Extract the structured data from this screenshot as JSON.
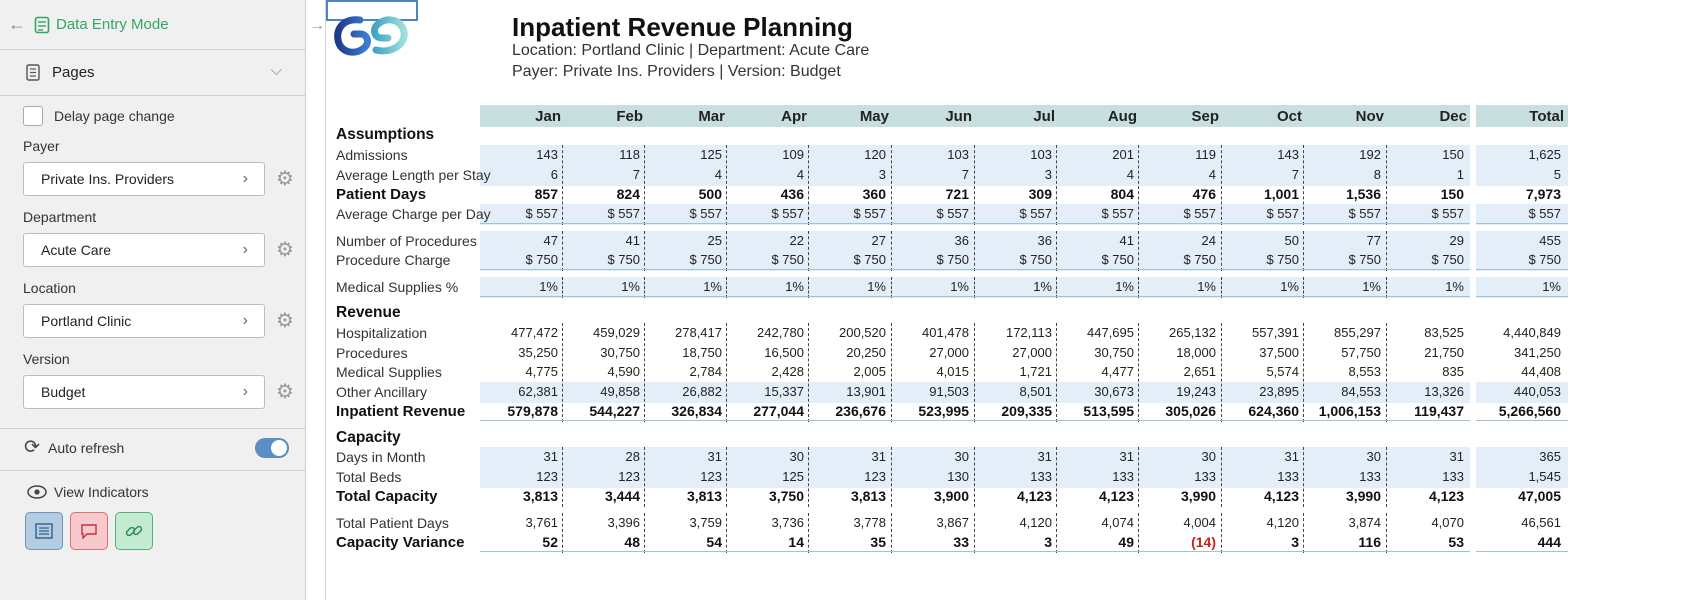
{
  "sidebar": {
    "mode_label": "Data Entry Mode",
    "pages_label": "Pages",
    "delay_label": "Delay page change",
    "selectors": [
      {
        "label": "Payer",
        "value": "Private Ins. Providers"
      },
      {
        "label": "Department",
        "value": "Acute Care"
      },
      {
        "label": "Location",
        "value": "Portland Clinic"
      },
      {
        "label": "Version",
        "value": "Budget"
      }
    ],
    "auto_refresh_label": "Auto refresh",
    "view_indicators_label": "View Indicators"
  },
  "report": {
    "title": "Inpatient Revenue Planning",
    "subtitle1": "Location: Portland Clinic | Department: Acute Care",
    "subtitle2": "Payer: Private Ins. Providers | Version: Budget",
    "columns": [
      "Jan",
      "Feb",
      "Mar",
      "Apr",
      "May",
      "Jun",
      "Jul",
      "Aug",
      "Sep",
      "Oct",
      "Nov",
      "Dec",
      "Total"
    ],
    "sections": {
      "assumptions": "Assumptions",
      "revenue": "Revenue",
      "capacity": "Capacity"
    },
    "rows": [
      {
        "label": "Admissions",
        "values": [
          "143",
          "118",
          "125",
          "109",
          "120",
          "103",
          "103",
          "201",
          "119",
          "143",
          "192",
          "150",
          "1,625"
        ]
      },
      {
        "label": "Average Length per Stay",
        "values": [
          "6",
          "7",
          "4",
          "4",
          "3",
          "7",
          "3",
          "4",
          "4",
          "7",
          "8",
          "1",
          "5"
        ]
      },
      {
        "label": "Patient Days",
        "values": [
          "857",
          "824",
          "500",
          "436",
          "360",
          "721",
          "309",
          "804",
          "476",
          "1,001",
          "1,536",
          "150",
          "7,973"
        ]
      },
      {
        "label": "Average Charge per Day",
        "values": [
          "$ 557",
          "$ 557",
          "$ 557",
          "$ 557",
          "$ 557",
          "$ 557",
          "$ 557",
          "$ 557",
          "$ 557",
          "$ 557",
          "$ 557",
          "$ 557",
          "$ 557"
        ]
      },
      {
        "label": "Number of Procedures",
        "values": [
          "47",
          "41",
          "25",
          "22",
          "27",
          "36",
          "36",
          "41",
          "24",
          "50",
          "77",
          "29",
          "455"
        ]
      },
      {
        "label": "Procedure Charge",
        "values": [
          "$ 750",
          "$ 750",
          "$ 750",
          "$ 750",
          "$ 750",
          "$ 750",
          "$ 750",
          "$ 750",
          "$ 750",
          "$ 750",
          "$ 750",
          "$ 750",
          "$ 750"
        ]
      },
      {
        "label": "Medical Supplies %",
        "values": [
          "1%",
          "1%",
          "1%",
          "1%",
          "1%",
          "1%",
          "1%",
          "1%",
          "1%",
          "1%",
          "1%",
          "1%",
          "1%"
        ]
      },
      {
        "label": "Hospitalization",
        "values": [
          "477,472",
          "459,029",
          "278,417",
          "242,780",
          "200,520",
          "401,478",
          "172,113",
          "447,695",
          "265,132",
          "557,391",
          "855,297",
          "83,525",
          "4,440,849"
        ]
      },
      {
        "label": "Procedures",
        "values": [
          "35,250",
          "30,750",
          "18,750",
          "16,500",
          "20,250",
          "27,000",
          "27,000",
          "30,750",
          "18,000",
          "37,500",
          "57,750",
          "21,750",
          "341,250"
        ]
      },
      {
        "label": "Medical Supplies",
        "values": [
          "4,775",
          "4,590",
          "2,784",
          "2,428",
          "2,005",
          "4,015",
          "1,721",
          "4,477",
          "2,651",
          "5,574",
          "8,553",
          "835",
          "44,408"
        ]
      },
      {
        "label": "Other Ancillary",
        "values": [
          "62,381",
          "49,858",
          "26,882",
          "15,337",
          "13,901",
          "91,503",
          "8,501",
          "30,673",
          "19,243",
          "23,895",
          "84,553",
          "13,326",
          "440,053"
        ]
      },
      {
        "label": "Inpatient Revenue",
        "values": [
          "579,878",
          "544,227",
          "326,834",
          "277,044",
          "236,676",
          "523,995",
          "209,335",
          "513,595",
          "305,026",
          "624,360",
          "1,006,153",
          "119,437",
          "5,266,560"
        ]
      },
      {
        "label": "Days in Month",
        "values": [
          "31",
          "28",
          "31",
          "30",
          "31",
          "30",
          "31",
          "31",
          "30",
          "31",
          "30",
          "31",
          "365"
        ]
      },
      {
        "label": "Total Beds",
        "values": [
          "123",
          "123",
          "123",
          "125",
          "123",
          "130",
          "133",
          "133",
          "133",
          "133",
          "133",
          "133",
          "1,545"
        ]
      },
      {
        "label": "Total Capacity",
        "values": [
          "3,813",
          "3,444",
          "3,813",
          "3,750",
          "3,813",
          "3,900",
          "4,123",
          "4,123",
          "3,990",
          "4,123",
          "3,990",
          "4,123",
          "47,005"
        ]
      },
      {
        "label": "Total Patient Days",
        "values": [
          "3,761",
          "3,396",
          "3,759",
          "3,736",
          "3,778",
          "3,867",
          "4,120",
          "4,074",
          "4,004",
          "4,120",
          "3,874",
          "4,070",
          "46,561"
        ]
      },
      {
        "label": "Capacity Variance",
        "values": [
          "52",
          "48",
          "54",
          "14",
          "35",
          "33",
          "3",
          "49",
          "(14)",
          "3",
          "116",
          "53",
          "444"
        ]
      }
    ]
  },
  "colors": {
    "accent_green": "#2faa62",
    "header_band": "#c7dfde",
    "input_band": "#e3eef9",
    "negative": "#d11c1c"
  },
  "icons": [
    "back-arrow-icon",
    "form-icon",
    "document-icon",
    "chevron-down-icon",
    "chevron-right-icon",
    "gear-icon",
    "refresh-icon",
    "toggle-icon",
    "eye-icon",
    "list-icon",
    "comment-icon",
    "link-icon",
    "forward-arrow-icon"
  ]
}
